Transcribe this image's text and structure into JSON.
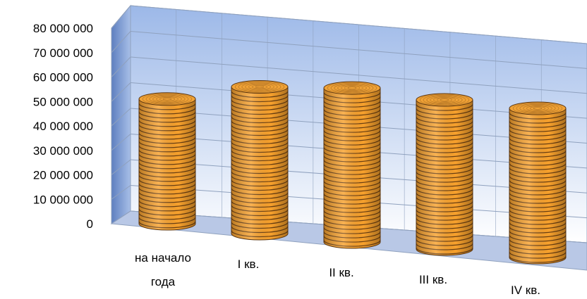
{
  "chart_data": {
    "type": "bar",
    "bar_style": "3d-cylinder",
    "title": "",
    "xlabel": "",
    "ylabel": "",
    "ylim": [
      0,
      80000000
    ],
    "grid": true,
    "legend": "none",
    "y_ticks": [
      0,
      10000000,
      20000000,
      30000000,
      40000000,
      50000000,
      60000000,
      70000000,
      80000000
    ],
    "y_tick_labels": [
      "0",
      "10 000 000",
      "20 000 000",
      "30 000 000",
      "40 000 000",
      "50 000 000",
      "60 000 000",
      "70 000 000",
      "80 000 000"
    ],
    "categories": [
      [
        "на начало",
        "года"
      ],
      [
        "I кв."
      ],
      [
        "II кв."
      ],
      [
        "III кв."
      ],
      [
        "IV кв."
      ]
    ],
    "values": [
      51000000,
      60000000,
      63000000,
      61000000,
      61000000
    ],
    "colors": {
      "bar_fill": "#f7a12d",
      "bar_stripe": "#6b3f12",
      "bar_top": "#f0a236",
      "back_wall_top": "#9cb8e8",
      "back_wall_bottom": "#ffffff",
      "floor": "#b9c8e6",
      "grid": "#8fa1be"
    }
  }
}
